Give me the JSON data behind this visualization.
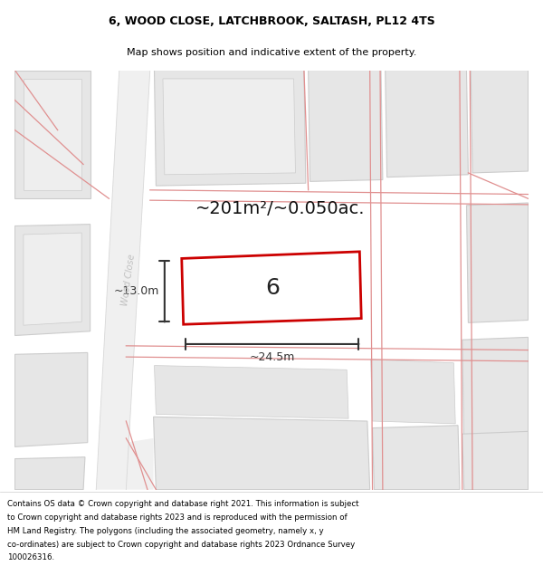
{
  "title": "6, WOOD CLOSE, LATCHBROOK, SALTASH, PL12 4TS",
  "subtitle": "Map shows position and indicative extent of the property.",
  "area_label": "~201m²/~0.050ac.",
  "property_number": "6",
  "dim_width": "~24.5m",
  "dim_height": "~13.0m",
  "street_label": "Wood Close",
  "footer_lines": [
    "Contains OS data © Crown copyright and database right 2021. This information is subject",
    "to Crown copyright and database rights 2023 and is reproduced with the permission of",
    "HM Land Registry. The polygons (including the associated geometry, namely x, y",
    "co-ordinates) are subject to Crown copyright and database rights 2023 Ordnance Survey",
    "100026316."
  ],
  "bg_color": "#ffffff",
  "property_rect_color": "#cc0000",
  "dim_line_color": "#333333",
  "road_line_color": "#e09090",
  "building_fill": "#e6e6e6",
  "building_edge": "#cccccc",
  "street_label_color": "#c0c0c0",
  "title_fontsize": 9,
  "subtitle_fontsize": 8,
  "area_fontsize": 14,
  "number_fontsize": 18,
  "footer_fontsize": 6.2
}
